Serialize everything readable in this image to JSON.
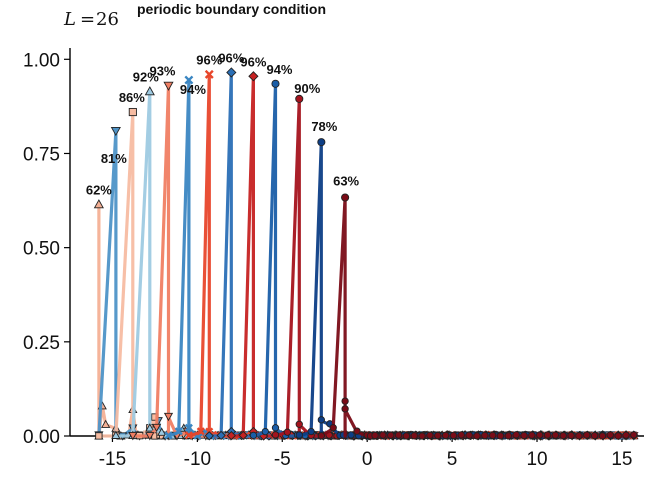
{
  "chart_data": {
    "type": "line",
    "title_variable": "L",
    "title_equals": "=",
    "title_value": "26",
    "subtitle": "periodic boundary condition",
    "xlabel": "",
    "ylabel": "",
    "xlim": [
      -17.5,
      16.3
    ],
    "ylim": [
      0,
      1.03
    ],
    "x_ticks": [
      {
        "value": -15,
        "label": "-15"
      },
      {
        "value": -10,
        "label": "-10"
      },
      {
        "value": -5,
        "label": "-5"
      },
      {
        "value": 0,
        "label": "0"
      },
      {
        "value": 5,
        "label": "5"
      },
      {
        "value": 10,
        "label": "10"
      },
      {
        "value": 15,
        "label": "15"
      }
    ],
    "y_ticks": [
      {
        "value": 0.0,
        "label": "0.00"
      },
      {
        "value": 0.25,
        "label": "0.25"
      },
      {
        "value": 0.5,
        "label": "0.50"
      },
      {
        "value": 0.75,
        "label": "0.75"
      },
      {
        "value": 1.0,
        "label": "1.00"
      }
    ],
    "grid": false,
    "legend": "none",
    "series": [
      {
        "color": "#f4b095",
        "marker": "triangle-up",
        "peak_x": -15.8,
        "peak_y": 0.615,
        "peak_label": "62%",
        "side": [
          [
            -15.8,
            0.0
          ],
          [
            -15.6,
            0.08
          ],
          [
            -15.4,
            0.03
          ],
          [
            -14.8,
            0.02
          ],
          [
            -13.8,
            0.07
          ],
          [
            -13.5,
            0.0
          ],
          [
            -12.5,
            0.01
          ]
        ]
      },
      {
        "color": "#4e93c7",
        "marker": "triangle-down",
        "peak_x": -14.8,
        "peak_y": 0.81,
        "peak_label": "81%",
        "side": [
          [
            -15.8,
            0.0
          ],
          [
            -14.4,
            0.0
          ],
          [
            -13.8,
            0.02
          ],
          [
            -13.4,
            0.0
          ],
          [
            -12.6,
            0.02
          ],
          [
            -12.3,
            0.04
          ],
          [
            -11.9,
            0.0
          ]
        ]
      },
      {
        "color": "#f7bca2",
        "marker": "square",
        "peak_x": -13.8,
        "peak_y": 0.86,
        "peak_label": "86%",
        "side": [
          [
            -15.8,
            0.0
          ],
          [
            -14.8,
            0.0
          ],
          [
            -13.4,
            0.0
          ],
          [
            -12.8,
            0.02
          ],
          [
            -12.5,
            0.05
          ],
          [
            -12.2,
            0.0
          ]
        ]
      },
      {
        "color": "#9ecae1",
        "marker": "triangle-up",
        "peak_x": -12.8,
        "peak_y": 0.915,
        "peak_label": "92%",
        "side": [
          [
            -14.8,
            0.0
          ],
          [
            -13.8,
            0.0
          ],
          [
            -12.8,
            0.02
          ],
          [
            -12.1,
            0.01
          ],
          [
            -11.8,
            0.0
          ],
          [
            -10.8,
            0.02
          ]
        ]
      },
      {
        "color": "#f07e63",
        "marker": "triangle-down",
        "peak_x": -11.7,
        "peak_y": 0.93,
        "peak_label": "93%",
        "side": [
          [
            -13.8,
            0.0
          ],
          [
            -12.8,
            0.0
          ],
          [
            -12.4,
            0.02
          ],
          [
            -11.7,
            0.05
          ],
          [
            -11.2,
            0.0
          ],
          [
            -10.6,
            0.01
          ]
        ]
      },
      {
        "color": "#3b86c2",
        "marker": "x",
        "peak_x": -10.5,
        "peak_y": 0.945,
        "peak_label": "94%",
        "side": [
          [
            -11.7,
            0.0
          ],
          [
            -11.1,
            0.01
          ],
          [
            -10.5,
            0.02
          ],
          [
            -10.0,
            0.0
          ],
          [
            -9.5,
            0.01
          ]
        ]
      },
      {
        "color": "#e8462b",
        "marker": "x",
        "peak_x": -9.3,
        "peak_y": 0.96,
        "peak_label": "96%",
        "side": [
          [
            -10.5,
            0.0
          ],
          [
            -9.8,
            0.01
          ],
          [
            -9.3,
            0.01
          ],
          [
            -8.8,
            0.0
          ]
        ]
      },
      {
        "color": "#2a6fb6",
        "marker": "diamond",
        "peak_x": -8.0,
        "peak_y": 0.965,
        "peak_label": "96%",
        "side": [
          [
            -9.3,
            0.0
          ],
          [
            -8.6,
            0.0
          ],
          [
            -8.0,
            0.01
          ],
          [
            -7.4,
            0.0
          ]
        ]
      },
      {
        "color": "#c62222",
        "marker": "diamond",
        "peak_x": -6.7,
        "peak_y": 0.955,
        "peak_label": "96%",
        "side": [
          [
            -8.0,
            0.0
          ],
          [
            -7.3,
            0.0
          ],
          [
            -6.7,
            0.01
          ],
          [
            -6.1,
            0.0
          ]
        ]
      },
      {
        "color": "#1a5ea8",
        "marker": "circle",
        "peak_x": -5.4,
        "peak_y": 0.935,
        "peak_label": "94%",
        "side": [
          [
            -6.7,
            0.0
          ],
          [
            -6.0,
            0.01
          ],
          [
            -5.4,
            0.02
          ],
          [
            -4.8,
            0.0
          ]
        ]
      },
      {
        "color": "#a5131d",
        "marker": "circle",
        "peak_x": -4.0,
        "peak_y": 0.895,
        "peak_label": "90%",
        "side": [
          [
            -5.4,
            0.0
          ],
          [
            -4.7,
            0.01
          ],
          [
            -4.0,
            0.03
          ],
          [
            -3.3,
            0.0
          ]
        ]
      },
      {
        "color": "#0d3e86",
        "marker": "circle",
        "peak_x": -2.7,
        "peak_y": 0.78,
        "peak_label": "78%",
        "side": [
          [
            -4.0,
            0.0
          ],
          [
            -3.3,
            0.01
          ],
          [
            -2.7,
            0.04
          ],
          [
            -2.2,
            0.03
          ],
          [
            -1.6,
            0.0
          ]
        ]
      },
      {
        "color": "#7a0c17",
        "marker": "circle",
        "peak_x": -1.3,
        "peak_y": 0.633,
        "peak_label": "63%",
        "side": [
          [
            -2.7,
            0.0
          ],
          [
            -2.0,
            0.02
          ],
          [
            -1.3,
            0.09
          ],
          [
            -1.3,
            0.07
          ],
          [
            -0.6,
            0.01
          ],
          [
            0.2,
            0.0
          ]
        ]
      }
    ]
  }
}
